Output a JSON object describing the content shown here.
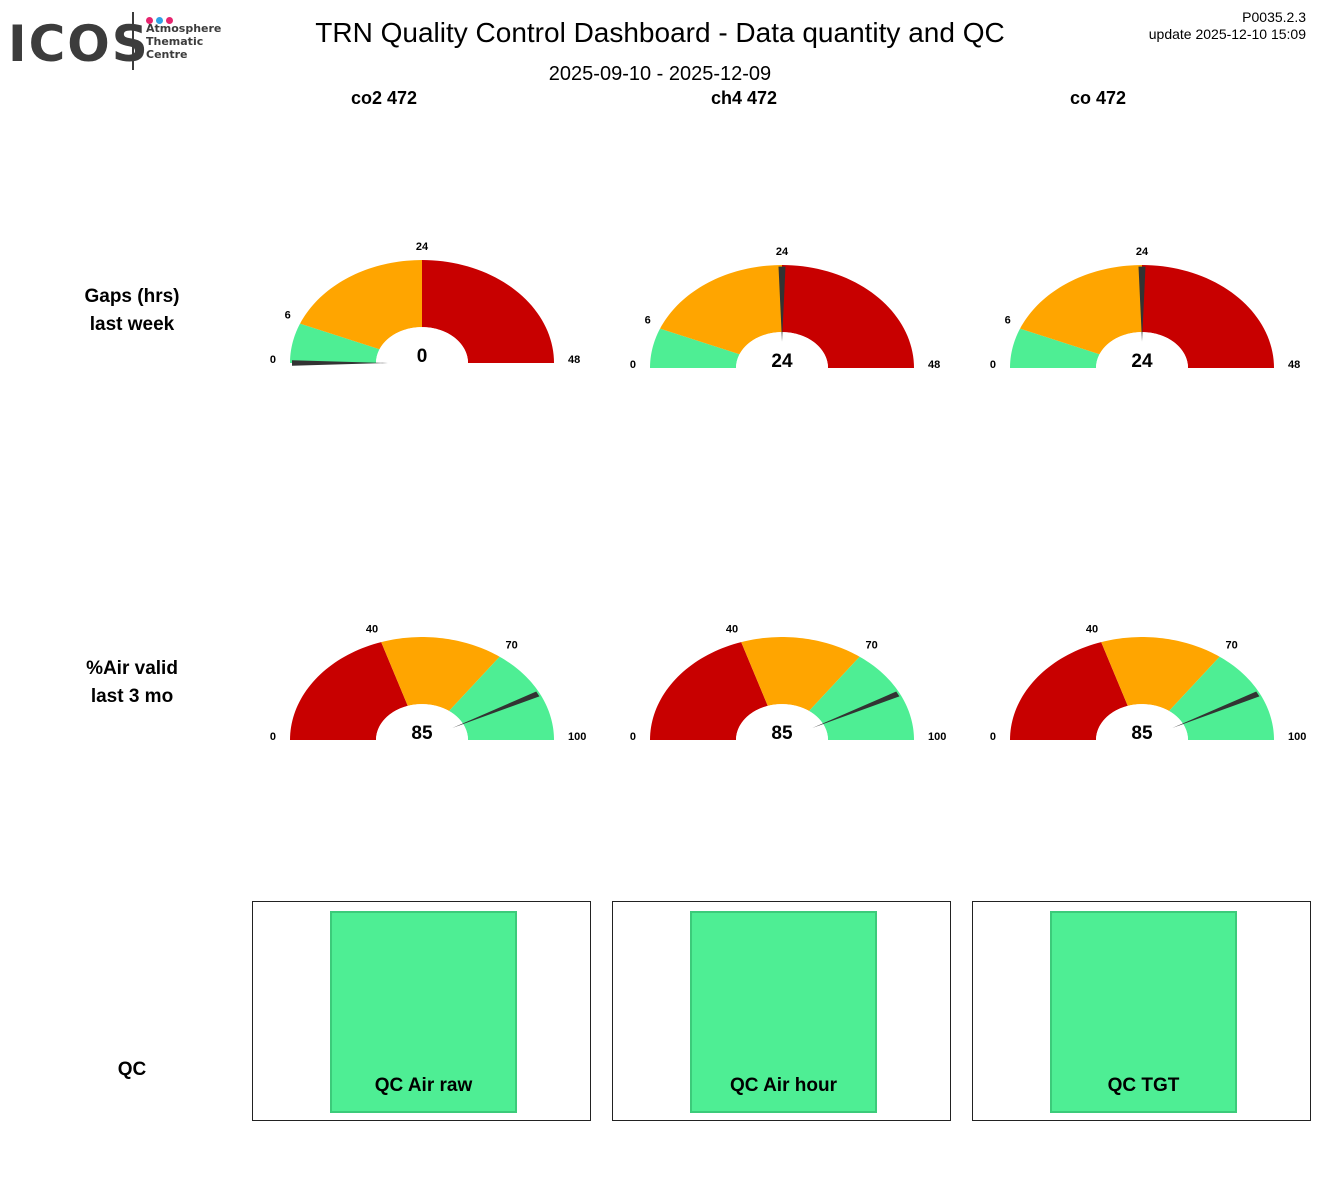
{
  "logo": {
    "text": "ICOS",
    "lines": [
      "Atmosphere",
      "Thematic",
      "Centre"
    ],
    "dot_colors": [
      "#e6246e",
      "#2ea3e6",
      "#e6246e"
    ]
  },
  "header": {
    "title": "TRN  Quality Control Dashboard - Data quantity and QC",
    "subtitle": "2025-09-10 - 2025-12-09",
    "version": "P0035.2.3",
    "update": "update  2025-12-10 15:09"
  },
  "columns": [
    "co2 472",
    "ch4 472",
    "co 472"
  ],
  "rows": {
    "gaps": [
      "Gaps (hrs)",
      "last week"
    ],
    "air": [
      "%Air valid",
      "last 3 mo"
    ],
    "qc": "QC"
  },
  "colors": {
    "red": "#c80000",
    "orange": "#ffa500",
    "green": "#4eee94",
    "needle": "#333333"
  },
  "chart_data": [
    {
      "type": "gauge",
      "metric": "gaps",
      "series": "co2 472",
      "min": 0,
      "max": 48,
      "value": 0,
      "value_label": "0",
      "ticks": [
        0,
        6,
        24,
        48
      ],
      "bands": [
        {
          "from": 0,
          "to": 6,
          "color": "green"
        },
        {
          "from": 6,
          "to": 24,
          "color": "orange"
        },
        {
          "from": 24,
          "to": 48,
          "color": "red"
        }
      ]
    },
    {
      "type": "gauge",
      "metric": "gaps",
      "series": "ch4 472",
      "min": 0,
      "max": 48,
      "value": 24,
      "value_label": "24",
      "ticks": [
        0,
        6,
        24,
        48
      ],
      "bands": [
        {
          "from": 0,
          "to": 6,
          "color": "green"
        },
        {
          "from": 6,
          "to": 24,
          "color": "orange"
        },
        {
          "from": 24,
          "to": 48,
          "color": "red"
        }
      ]
    },
    {
      "type": "gauge",
      "metric": "gaps",
      "series": "co 472",
      "min": 0,
      "max": 48,
      "value": 24,
      "value_label": "24",
      "ticks": [
        0,
        6,
        24,
        48
      ],
      "bands": [
        {
          "from": 0,
          "to": 6,
          "color": "green"
        },
        {
          "from": 6,
          "to": 24,
          "color": "orange"
        },
        {
          "from": 24,
          "to": 48,
          "color": "red"
        }
      ]
    },
    {
      "type": "gauge",
      "metric": "air_valid",
      "series": "co2 472",
      "min": 0,
      "max": 100,
      "value": 85,
      "value_label": "85",
      "ticks": [
        0,
        40,
        70,
        100
      ],
      "bands": [
        {
          "from": 0,
          "to": 40,
          "color": "red"
        },
        {
          "from": 40,
          "to": 70,
          "color": "orange"
        },
        {
          "from": 70,
          "to": 100,
          "color": "green"
        }
      ]
    },
    {
      "type": "gauge",
      "metric": "air_valid",
      "series": "ch4 472",
      "min": 0,
      "max": 100,
      "value": 85,
      "value_label": "85",
      "ticks": [
        0,
        40,
        70,
        100
      ],
      "bands": [
        {
          "from": 0,
          "to": 40,
          "color": "red"
        },
        {
          "from": 40,
          "to": 70,
          "color": "orange"
        },
        {
          "from": 70,
          "to": 100,
          "color": "green"
        }
      ]
    },
    {
      "type": "gauge",
      "metric": "air_valid",
      "series": "co 472",
      "min": 0,
      "max": 100,
      "value": 85,
      "value_label": "85",
      "ticks": [
        0,
        40,
        70,
        100
      ],
      "bands": [
        {
          "from": 0,
          "to": 40,
          "color": "red"
        },
        {
          "from": 40,
          "to": 70,
          "color": "orange"
        },
        {
          "from": 70,
          "to": 100,
          "color": "green"
        }
      ]
    }
  ],
  "qc": [
    {
      "label": "QC Air raw",
      "color": "#4eee94"
    },
    {
      "label": "QC Air hour",
      "color": "#4eee94"
    },
    {
      "label": "QC TGT",
      "color": "#4eee94"
    }
  ]
}
